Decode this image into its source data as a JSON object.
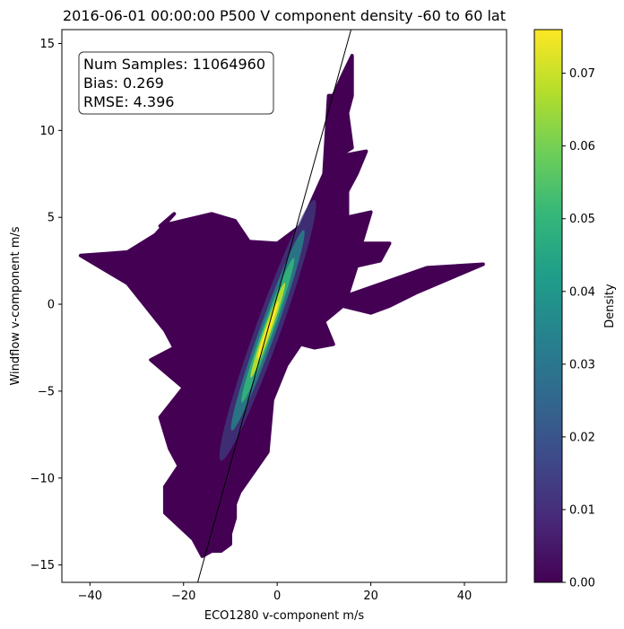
{
  "chart_data": {
    "type": "scatter",
    "title": "2016-06-01 00:00:00 P500 V component density -60 to 60 lat",
    "xlabel": "ECO1280 v-component m/s",
    "ylabel": "Windflow v-component m/s",
    "xlim": [
      -46,
      49
    ],
    "ylim": [
      -16,
      15.8
    ],
    "xticks": [
      -40,
      -20,
      0,
      20,
      40
    ],
    "xtick_labels": [
      "−40",
      "−20",
      "0",
      "20",
      "40"
    ],
    "yticks": [
      -15,
      -10,
      -5,
      0,
      5,
      10,
      15
    ],
    "ytick_labels": [
      "−15",
      "−10",
      "−5",
      "0",
      "5",
      "10",
      "15"
    ],
    "grid": false,
    "stats": {
      "num_samples_text": "Num Samples: 11064960",
      "bias_text": "Bias: 0.269",
      "rmse_text": "RMSE: 4.396"
    },
    "reference_line": {
      "x": [
        -17.5,
        16.5
      ],
      "y": [
        -16.5,
        16.5
      ]
    },
    "scatter_outline": {
      "x": [
        -6,
        0,
        5,
        10,
        11,
        12,
        14,
        16,
        16,
        15,
        16,
        13,
        19,
        17,
        15,
        15,
        20,
        18,
        24,
        22,
        17,
        15,
        32,
        44,
        30,
        24,
        20,
        14,
        10,
        12,
        8,
        5,
        2,
        -1,
        -2,
        -8,
        -9,
        -9,
        -10,
        -10,
        -12,
        -14,
        -16,
        -18,
        -24,
        -24,
        -21,
        -23,
        -25,
        -20,
        -27,
        -22,
        -24,
        -32,
        -42,
        -32,
        -26,
        -22,
        -25,
        -14,
        -9,
        -6
      ],
      "y": [
        3.6,
        3.5,
        4.5,
        7.5,
        12,
        12,
        13.2,
        14.3,
        12,
        11,
        9,
        8.5,
        8.8,
        7.5,
        6.5,
        5,
        5.3,
        3.5,
        3.5,
        2.5,
        2.2,
        0.5,
        2.1,
        2.3,
        0.7,
        -0.1,
        -0.5,
        -0.1,
        -1,
        -2.3,
        -2.5,
        -2.3,
        -3.5,
        -5.5,
        -8.5,
        -10.8,
        -11.5,
        -12.3,
        -13.2,
        -13.8,
        -14.2,
        -14.2,
        -14.5,
        -13.5,
        -12,
        -10.5,
        -9.3,
        -8.3,
        -6.5,
        -4.8,
        -3.2,
        -2.5,
        -1.5,
        1.2,
        2.8,
        3,
        4,
        5.2,
        4.5,
        5.2,
        4.8,
        3.6
      ],
      "fill_density": 0.0
    },
    "density_core": {
      "x": [
        -12,
        -8,
        -5,
        -3,
        -1.5,
        0,
        1.5,
        3,
        5,
        8
      ],
      "y": [
        -9,
        -6,
        -3.5,
        -1.5,
        -0.5,
        0.5,
        1.5,
        3,
        4.5,
        6
      ],
      "peak_density": 0.075
    },
    "colorbar": {
      "label": "Density",
      "range": [
        0,
        0.076
      ],
      "ticks": [
        0,
        0.01,
        0.02,
        0.03,
        0.04,
        0.05,
        0.06,
        0.07
      ],
      "tick_labels": [
        "0.00",
        "0.01",
        "0.02",
        "0.03",
        "0.04",
        "0.05",
        "0.06",
        "0.07"
      ],
      "colormap": "viridis",
      "colormap_stops": [
        "#440154",
        "#482878",
        "#3e4989",
        "#31688e",
        "#26828e",
        "#1f9e89",
        "#35b779",
        "#6ece58",
        "#b5de2b",
        "#fde725"
      ]
    },
    "colors": {
      "low_density": "#440154",
      "reference_line": "#000000"
    }
  }
}
